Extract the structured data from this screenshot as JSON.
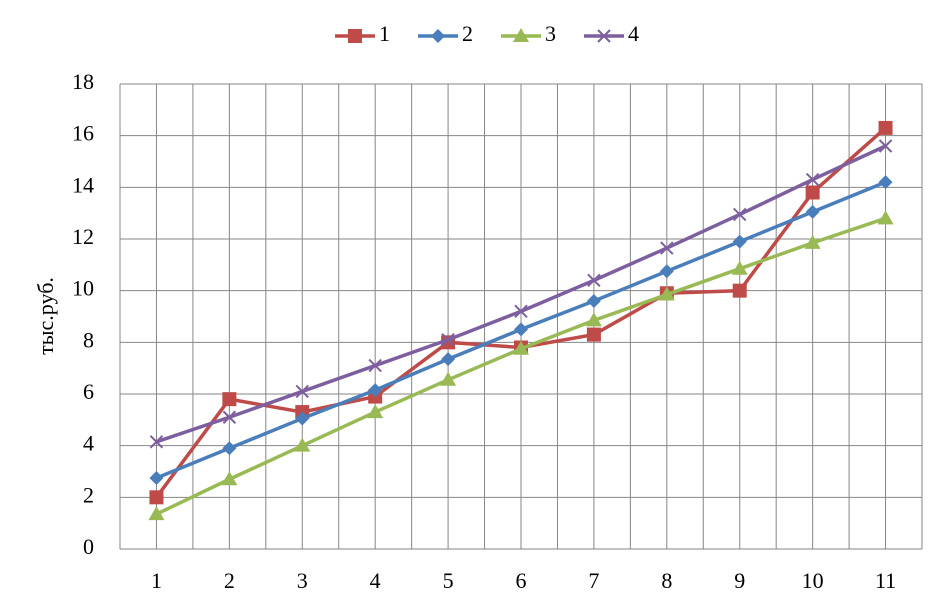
{
  "chart_data": {
    "type": "line",
    "y_label": "тыс.руб.",
    "categories": [
      "1",
      "2",
      "3",
      "4",
      "5",
      "6",
      "7",
      "8",
      "9",
      "10",
      "11"
    ],
    "series": [
      {
        "name": "1",
        "color": "#be4b48",
        "marker": "square",
        "values": [
          2.0,
          5.8,
          5.3,
          5.9,
          8.0,
          7.8,
          8.3,
          9.9,
          10.0,
          13.8,
          16.3
        ]
      },
      {
        "name": "2",
        "color": "#4a7ebb",
        "marker": "diamond",
        "values": [
          2.75,
          3.9,
          5.05,
          6.15,
          7.35,
          8.5,
          9.6,
          10.75,
          11.9,
          13.05,
          14.2
        ]
      },
      {
        "name": "3",
        "color": "#98b954",
        "marker": "triangle",
        "values": [
          1.35,
          2.7,
          4.0,
          5.3,
          6.55,
          7.75,
          8.85,
          9.85,
          10.85,
          11.85,
          12.8
        ]
      },
      {
        "name": "4",
        "color": "#7d5fa0",
        "marker": "x",
        "values": [
          4.15,
          5.1,
          6.1,
          7.1,
          8.1,
          9.2,
          10.4,
          11.65,
          12.95,
          14.3,
          15.6
        ]
      }
    ],
    "ylim": [
      0,
      18
    ],
    "yticks": [
      0,
      2,
      4,
      6,
      8,
      10,
      12,
      14,
      16,
      18
    ],
    "grid": true,
    "legend": "top"
  }
}
